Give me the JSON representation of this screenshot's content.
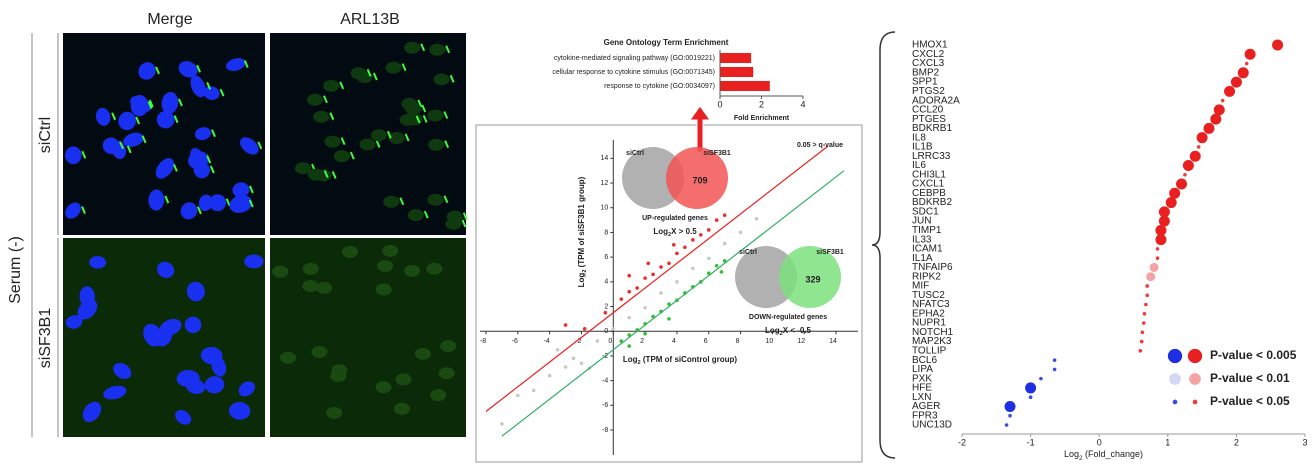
{
  "figure_labels": {
    "columns": [
      "Merge",
      "ARL13B"
    ],
    "rows": [
      "siCtrl",
      "siSF3B1"
    ],
    "condition": "Serum (-)"
  },
  "chart_data": [
    {
      "type": "hbar",
      "title": "Gene Ontology Term Enrichment",
      "categories": [
        "cytokine-mediated signaling pathway (GO:0019221)",
        "cellular response to cytokine stimulus (GO:0071345)",
        "response to cytokine (GO:0034097)"
      ],
      "values": [
        1.5,
        1.6,
        2.4
      ],
      "color": "#e8201f",
      "xlim": [
        0,
        4
      ],
      "xticks": [
        0,
        2,
        4
      ],
      "xlabel": "Fold Enrichment"
    },
    {
      "type": "scatter",
      "xlabel": [
        "Log",
        "2",
        " (TPM of siControl group)"
      ],
      "ylabel": [
        "Log",
        "2",
        " (TPM of siSF3B1 group)"
      ],
      "xlim": [
        -8,
        14.5
      ],
      "ylim": [
        -8,
        15
      ],
      "xticks": [
        -8,
        -6,
        -4,
        -2,
        0,
        2,
        4,
        6,
        8,
        10,
        12,
        14
      ],
      "yticks": [
        -8,
        -6,
        -4,
        -2,
        0,
        2,
        4,
        6,
        8,
        10,
        12,
        14
      ],
      "series": [
        {
          "color": "#c8c8c8",
          "x": [
            -7,
            -6,
            -5,
            -4,
            -3,
            -2.5,
            -2,
            -1,
            0,
            1,
            2,
            3,
            4,
            5,
            6,
            7,
            8,
            9,
            -3.5,
            -1.5
          ],
          "y": [
            -7.5,
            -5.2,
            -4.8,
            -3.6,
            -2.9,
            -2.2,
            -2.6,
            -0.8,
            0.2,
            1.1,
            1.9,
            3.1,
            4,
            5.1,
            5.9,
            7.1,
            8,
            9.1,
            -1.5,
            -3
          ]
        },
        {
          "color": "#ee2b2b",
          "x": [
            -1.8,
            -0.5,
            0.5,
            1,
            1.5,
            2,
            2.5,
            3,
            3.5,
            4,
            4.5,
            5,
            5.5,
            6,
            6.5,
            7,
            2.2,
            3.8,
            -3,
            1
          ],
          "y": [
            0.2,
            1.5,
            2.6,
            3.2,
            3.5,
            4.3,
            4.6,
            5.2,
            5.5,
            6.3,
            6.8,
            7.4,
            7.8,
            8.2,
            9,
            9.4,
            5.5,
            7,
            0.5,
            4.5
          ]
        },
        {
          "color": "#33c033",
          "x": [
            0.5,
            1,
            1.5,
            2,
            2.5,
            3,
            3.5,
            4,
            4.5,
            5,
            5.5,
            6,
            6.5,
            7,
            2,
            3.5,
            1,
            6.8
          ],
          "y": [
            -0.8,
            -0.3,
            0.1,
            0.6,
            1.2,
            1.6,
            2.2,
            2.5,
            3.1,
            3.6,
            4,
            4.7,
            5.3,
            5.7,
            -0.2,
            1,
            -1.2,
            4.8
          ]
        }
      ],
      "lines": [
        {
          "color": "#e8201f",
          "x": [
            -8,
            13.5
          ],
          "y": [
            -6.5,
            15
          ]
        },
        {
          "color": "#2fb060",
          "x": [
            -7,
            14.5
          ],
          "y": [
            -8.5,
            13
          ]
        }
      ],
      "q_note": "0.05 > q-value",
      "venn_up": {
        "left": "siCtrl",
        "right": "siSF3B1",
        "count": 709,
        "label": "UP-regulated genes",
        "threshold": [
          "Log",
          "2",
          "X > 0.5"
        ],
        "color": "#f25555"
      },
      "venn_down": {
        "left": "siCtrl",
        "right": "siSF3B1",
        "count": 329,
        "label": "DOWN-regulated genes",
        "threshold": [
          "Log",
          "2",
          "X < -0.5"
        ],
        "color": "#7de07d"
      }
    },
    {
      "type": "dot",
      "categories": [
        "HMOX1",
        "CXCL2",
        "CXCL3",
        "BMP2",
        "SPP1",
        "PTGS2",
        "ADORA2A",
        "CCL20",
        "PTGES",
        "BDKRB1",
        "IL8",
        "IL1B",
        "LRRC33",
        "IL6",
        "CHI3L1",
        "CXCL1",
        "CEBPB",
        "BDKRB2",
        "SDC1",
        "JUN",
        "TIMP1",
        "IL33",
        "ICAM1",
        "IL1A",
        "TNFAIP6",
        "RIPK2",
        "MIF",
        "TUSC2",
        "NFATC3",
        "EPHA2",
        "NUPR1",
        "NOTCH1",
        "MAP2K3",
        "TOLLIP",
        "BCL6",
        "LIPA",
        "PXK",
        "HFE",
        "LXN",
        "AGER",
        "FPR3",
        "UNC13D"
      ],
      "values": [
        2.6,
        2.2,
        2.15,
        2.1,
        2.0,
        1.9,
        1.8,
        1.75,
        1.7,
        1.6,
        1.5,
        1.45,
        1.4,
        1.3,
        1.25,
        1.2,
        1.1,
        1.05,
        0.95,
        0.95,
        0.9,
        0.9,
        0.85,
        0.85,
        0.8,
        0.75,
        0.7,
        0.7,
        0.68,
        0.66,
        0.65,
        0.63,
        0.62,
        0.6,
        -0.65,
        -0.65,
        -0.85,
        -1.0,
        -1.0,
        -1.3,
        -1.3,
        -1.35
      ],
      "levels": [
        0,
        0,
        2,
        0,
        0,
        0,
        2,
        0,
        0,
        0,
        0,
        2,
        0,
        0,
        2,
        0,
        0,
        0,
        0,
        0,
        0,
        0,
        2,
        2,
        1,
        1,
        2,
        2,
        2,
        2,
        2,
        2,
        2,
        2,
        2,
        2,
        2,
        0,
        2,
        0,
        2,
        2
      ],
      "xlim": [
        -2,
        3
      ],
      "xticks": [
        -2,
        -1,
        0,
        1,
        2,
        3
      ],
      "xlabel": [
        "Log",
        "2",
        " (Fold_change)"
      ],
      "legend": [
        {
          "label": "P-value < 0.005",
          "colors": [
            "#1d2fe0",
            "#e8201f"
          ]
        },
        {
          "label": "P-value < 0.01",
          "colors": [
            "#d4d8f2",
            "#f5a3a3"
          ]
        },
        {
          "label": "P-value < 0.05",
          "colors": [
            "#3a4ae8",
            "#ee3a3a"
          ]
        }
      ]
    }
  ]
}
